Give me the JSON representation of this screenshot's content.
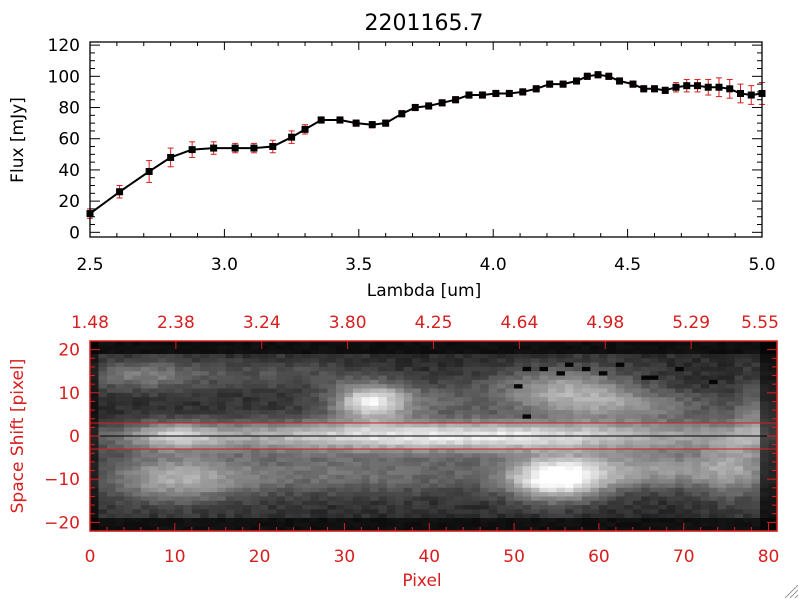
{
  "title": "2201165.7",
  "colors": {
    "axis_top": "#000000",
    "line": "#000000",
    "marker": "#000000",
    "error_bar": "#d81e1e",
    "axis_bottom": "#d81e1e",
    "background": "#ffffff"
  },
  "chart_data": [
    {
      "type": "line",
      "title": "2201165.7",
      "xlabel": "Lambda [um]",
      "ylabel": "Flux [mJy]",
      "xlim": [
        2.5,
        5.0
      ],
      "ylim": [
        -3,
        122
      ],
      "x_ticks": [
        2.5,
        3.0,
        3.5,
        4.0,
        4.5,
        5.0
      ],
      "x_tick_labels": [
        "2.5",
        "3.0",
        "3.5",
        "4.0",
        "4.5",
        "5.0"
      ],
      "y_ticks": [
        0,
        20,
        40,
        60,
        80,
        100,
        120
      ],
      "y_tick_labels": [
        "0",
        "20",
        "40",
        "60",
        "80",
        "100",
        "120"
      ],
      "grid": false,
      "series": [
        {
          "name": "Flux",
          "x": [
            2.5,
            2.61,
            2.72,
            2.8,
            2.88,
            2.96,
            3.04,
            3.11,
            3.18,
            3.25,
            3.3,
            3.36,
            3.43,
            3.49,
            3.55,
            3.6,
            3.66,
            3.71,
            3.76,
            3.81,
            3.86,
            3.91,
            3.96,
            4.01,
            4.06,
            4.11,
            4.16,
            4.21,
            4.26,
            4.31,
            4.35,
            4.39,
            4.43,
            4.47,
            4.52,
            4.56,
            4.6,
            4.64,
            4.68,
            4.72,
            4.76,
            4.8,
            4.84,
            4.88,
            4.92,
            4.96,
            5.0
          ],
          "y": [
            12,
            26,
            39,
            48,
            53,
            54,
            54,
            54,
            55,
            61,
            66,
            72,
            72,
            70,
            69,
            70,
            76,
            80,
            81,
            83,
            85,
            88,
            88,
            89,
            89,
            90,
            92,
            95,
            95,
            97,
            100,
            101,
            100,
            97,
            95,
            92,
            92,
            91,
            93,
            94,
            94,
            93,
            93,
            92,
            89,
            88,
            89
          ],
          "yerr": [
            3,
            4,
            7,
            6,
            5,
            4,
            3,
            3,
            4,
            4,
            3,
            2,
            2,
            2,
            2,
            2,
            2,
            2,
            2,
            2,
            2,
            2,
            2,
            2,
            2,
            2,
            2,
            2,
            2,
            2,
            2,
            2,
            2,
            2,
            2,
            2,
            2,
            2,
            3,
            4,
            4,
            5,
            6,
            6,
            6,
            6,
            7
          ]
        }
      ]
    },
    {
      "type": "heatmap",
      "xlabel": "Pixel",
      "ylabel": "Space Shift [pixel]",
      "xlim": [
        0,
        81
      ],
      "ylim": [
        -22,
        22
      ],
      "x_ticks": [
        0,
        10,
        20,
        30,
        40,
        50,
        60,
        70,
        80
      ],
      "x_tick_labels": [
        "0",
        "10",
        "20",
        "30",
        "40",
        "50",
        "60",
        "70",
        "80"
      ],
      "y_ticks": [
        -20,
        -10,
        0,
        10,
        20
      ],
      "y_tick_labels": [
        "−20",
        "−10",
        "0",
        "10",
        "20"
      ],
      "top_axis_labels": [
        "1.48",
        "2.38",
        "3.24",
        "3.80",
        "4.25",
        "4.64",
        "4.98",
        "5.29",
        "5.55"
      ],
      "extraction_lines_y": [
        3,
        -3
      ],
      "center_line_y": 0,
      "colormap": "grayscale",
      "components": [
        {
          "x": 44,
          "y": 0,
          "sx": 26,
          "sy": 2.4,
          "amp": 0.62
        },
        {
          "x": 10,
          "y": 0,
          "sx": 3.5,
          "sy": 2.2,
          "amp": 0.35
        },
        {
          "x": 40,
          "y": 0,
          "sx": 20,
          "sy": 5,
          "amp": 0.14
        },
        {
          "x": 33,
          "y": 8,
          "sx": 3,
          "sy": 3,
          "amp": 0.6
        },
        {
          "x": 38,
          "y": 8.5,
          "sx": 6,
          "sy": 2.5,
          "amp": 0.2
        },
        {
          "x": 56,
          "y": 11,
          "sx": 6,
          "sy": 3.5,
          "amp": 0.45
        },
        {
          "x": 64,
          "y": 7,
          "sx": 7,
          "sy": 2.5,
          "amp": 0.3
        },
        {
          "x": 55,
          "y": -10,
          "sx": 4,
          "sy": 3.5,
          "amp": 0.75
        },
        {
          "x": 66,
          "y": -8,
          "sx": 8,
          "sy": 3,
          "amp": 0.4
        },
        {
          "x": 10,
          "y": -10,
          "sx": 6,
          "sy": 4,
          "amp": 0.4
        },
        {
          "x": 30,
          "y": -9,
          "sx": 16,
          "sy": 3.5,
          "amp": 0.25
        },
        {
          "x": 6,
          "y": 14,
          "sx": 5,
          "sy": 2.5,
          "amp": 0.3
        },
        {
          "x": 22,
          "y": 14,
          "sx": 8,
          "sy": 2.5,
          "amp": 0.15
        },
        {
          "x": 76,
          "y": -7,
          "sx": 3,
          "sy": 6,
          "amp": 0.3
        },
        {
          "x": 79,
          "y": 5,
          "sx": 2,
          "sy": 6,
          "amp": 0.25
        }
      ],
      "dark_pixels": [
        [
          51,
          16
        ],
        [
          53,
          16
        ],
        [
          55,
          15
        ],
        [
          56,
          17
        ],
        [
          58,
          16
        ],
        [
          60,
          15
        ],
        [
          62,
          17
        ],
        [
          66,
          14
        ],
        [
          69,
          16
        ],
        [
          50,
          12
        ],
        [
          51,
          5
        ],
        [
          65,
          14
        ],
        [
          73,
          13
        ]
      ]
    }
  ]
}
